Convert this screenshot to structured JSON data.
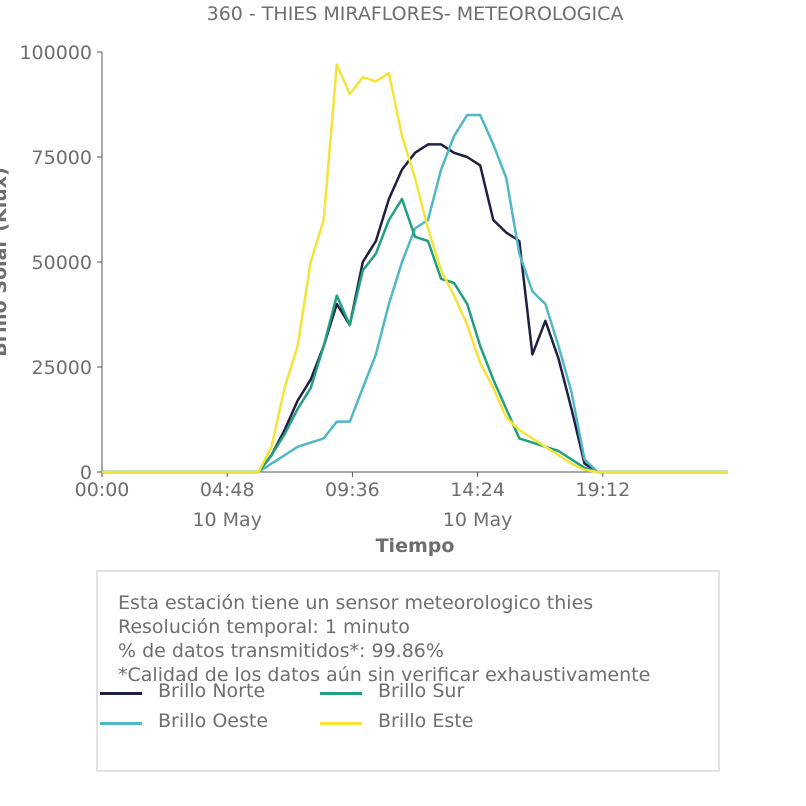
{
  "chart_data": {
    "type": "line",
    "title": "360 - THIES MIRAFLORES- METEOROLOGICA",
    "xlabel": "Tiempo",
    "ylabel": "Brillo Solar (Klux)",
    "xlim": [
      "00:00",
      "24:00"
    ],
    "ylim": [
      0,
      100000
    ],
    "xticks": [
      {
        "value": "00:00",
        "label": "00:00",
        "sub": ""
      },
      {
        "value": "04:48",
        "label": "04:48",
        "sub": "10 May"
      },
      {
        "value": "09:36",
        "label": "09:36",
        "sub": ""
      },
      {
        "value": "14:24",
        "label": "14:24",
        "sub": "10 May"
      },
      {
        "value": "19:12",
        "label": "19:12",
        "sub": ""
      }
    ],
    "yticks": [
      {
        "value": 0,
        "label": "0"
      },
      {
        "value": 25000,
        "label": "25000"
      },
      {
        "value": 50000,
        "label": "50000"
      },
      {
        "value": 75000,
        "label": "75000"
      },
      {
        "value": 100000,
        "label": "100000"
      }
    ],
    "x": [
      "00:00",
      "06:00",
      "06:30",
      "07:00",
      "07:30",
      "08:00",
      "08:30",
      "09:00",
      "09:30",
      "10:00",
      "10:30",
      "11:00",
      "11:30",
      "12:00",
      "12:30",
      "13:00",
      "13:30",
      "14:00",
      "14:30",
      "15:00",
      "15:30",
      "16:00",
      "16:30",
      "17:00",
      "17:30",
      "18:00",
      "18:30",
      "19:00",
      "24:00"
    ],
    "series": [
      {
        "name": "Brillo Norte",
        "color": "#1f1f44",
        "values": [
          0,
          0,
          4000,
          10000,
          17000,
          22000,
          30000,
          40000,
          35000,
          50000,
          55000,
          65000,
          72000,
          76000,
          78000,
          78000,
          76000,
          75000,
          73000,
          60000,
          57000,
          55000,
          28000,
          36000,
          27000,
          15000,
          2000,
          0,
          0
        ]
      },
      {
        "name": "Brillo Oeste",
        "color": "#4fb8c4",
        "values": [
          0,
          0,
          2000,
          4000,
          6000,
          7000,
          8000,
          12000,
          12000,
          20000,
          28000,
          40000,
          50000,
          58000,
          60000,
          72000,
          80000,
          85000,
          85000,
          78000,
          70000,
          52000,
          43000,
          40000,
          30000,
          19000,
          3000,
          0,
          0
        ]
      },
      {
        "name": "Brillo Sur",
        "color": "#21a080",
        "values": [
          0,
          0,
          4000,
          9000,
          15000,
          20000,
          30000,
          42000,
          35000,
          48000,
          52000,
          60000,
          65000,
          56000,
          55000,
          46000,
          45000,
          40000,
          30000,
          22000,
          15000,
          8000,
          7000,
          6000,
          5000,
          3000,
          1000,
          0,
          0
        ]
      },
      {
        "name": "Brillo Este",
        "color": "#f5e33a",
        "values": [
          0,
          0,
          6000,
          20000,
          30000,
          50000,
          60000,
          97000,
          90000,
          94000,
          93000,
          95000,
          80000,
          70000,
          58000,
          48000,
          42000,
          35000,
          26000,
          20000,
          13000,
          10000,
          8000,
          6000,
          4000,
          2000,
          500,
          0,
          0
        ]
      }
    ]
  },
  "info": {
    "line1": "Esta estación tiene un sensor meteorologico thies",
    "line2": "Resolución temporal: 1 minuto",
    "line3": "% de datos transmitidos*: 99.86%",
    "line4": "*Calidad de los datos aún sin verificar exhaustivamente"
  },
  "legend": [
    {
      "label": "Brillo Norte",
      "color": "#1f1f44"
    },
    {
      "label": "Brillo Sur",
      "color": "#21a080"
    },
    {
      "label": "Brillo Oeste",
      "color": "#4fb8c4"
    },
    {
      "label": "Brillo Este",
      "color": "#f5e33a"
    }
  ]
}
